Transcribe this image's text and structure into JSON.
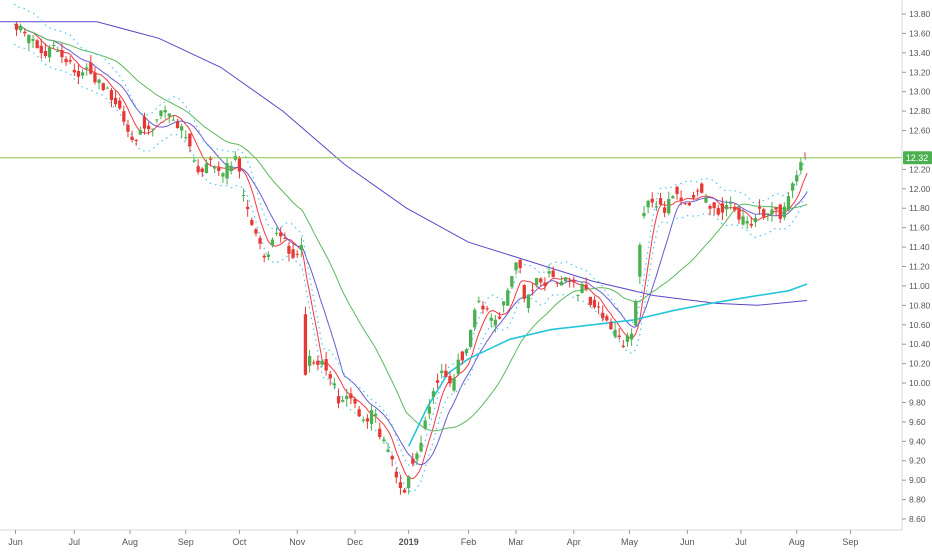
{
  "chart_data": {
    "type": "candlestick",
    "title": "",
    "xlabel": "",
    "ylabel": "",
    "grid": false,
    "legend": "none",
    "last_price_label": "12.32",
    "last_price": 12.32,
    "ylim": [
      8.5,
      13.95
    ],
    "y_ticks": [
      8.6,
      8.8,
      9.0,
      9.2,
      9.4,
      9.6,
      9.8,
      10.0,
      10.2,
      10.4,
      10.6,
      10.8,
      11.0,
      11.2,
      11.4,
      11.6,
      11.8,
      12.0,
      12.2,
      12.4,
      12.6,
      12.8,
      13.0,
      13.2,
      13.4,
      13.6,
      13.8
    ],
    "x_ticks": [
      {
        "label": "Jun",
        "t": 0.5
      },
      {
        "label": "Jul",
        "t": 29
      },
      {
        "label": "Aug",
        "t": 56
      },
      {
        "label": "Sep",
        "t": 83
      },
      {
        "label": "Oct",
        "t": 109
      },
      {
        "label": "Nov",
        "t": 137
      },
      {
        "label": "Dec",
        "t": 165
      },
      {
        "label": "2019",
        "t": 191
      },
      {
        "label": "Feb",
        "t": 220
      },
      {
        "label": "Mar",
        "t": 243
      },
      {
        "label": "Apr",
        "t": 271
      },
      {
        "label": "May",
        "t": 298
      },
      {
        "label": "Jun",
        "t": 326
      },
      {
        "label": "Jul",
        "t": 352
      },
      {
        "label": "Aug",
        "t": 379
      },
      {
        "label": "Sep",
        "t": 405
      }
    ],
    "x_range": [
      -7,
      430
    ],
    "close_anchors": [
      [
        0,
        13.68
      ],
      [
        8,
        13.52
      ],
      [
        15,
        13.4
      ],
      [
        20,
        13.45
      ],
      [
        25,
        13.32
      ],
      [
        30,
        13.18
      ],
      [
        35,
        13.25
      ],
      [
        40,
        13.1
      ],
      [
        45,
        13.0
      ],
      [
        50,
        12.9
      ],
      [
        55,
        12.6
      ],
      [
        57,
        12.45
      ],
      [
        62,
        12.7
      ],
      [
        66,
        12.62
      ],
      [
        70,
        12.75
      ],
      [
        74,
        12.8
      ],
      [
        79,
        12.65
      ],
      [
        84,
        12.5
      ],
      [
        88,
        12.2
      ],
      [
        91,
        12.15
      ],
      [
        95,
        12.3
      ],
      [
        100,
        12.1
      ],
      [
        104,
        12.25
      ],
      [
        108,
        12.32
      ],
      [
        110,
        11.95
      ],
      [
        113,
        11.8
      ],
      [
        117,
        11.5
      ],
      [
        121,
        11.25
      ],
      [
        124,
        11.45
      ],
      [
        128,
        11.55
      ],
      [
        132,
        11.4
      ],
      [
        136,
        11.3
      ],
      [
        139,
        11.4
      ],
      [
        141,
        10.1
      ],
      [
        143,
        10.3
      ],
      [
        146,
        10.15
      ],
      [
        150,
        10.2
      ],
      [
        154,
        10.0
      ],
      [
        158,
        9.8
      ],
      [
        162,
        9.95
      ],
      [
        166,
        9.7
      ],
      [
        170,
        9.6
      ],
      [
        174,
        9.7
      ],
      [
        178,
        9.4
      ],
      [
        182,
        9.25
      ],
      [
        186,
        8.95
      ],
      [
        189,
        8.85
      ],
      [
        192,
        9.2
      ],
      [
        196,
        9.3
      ],
      [
        200,
        9.7
      ],
      [
        204,
        10.0
      ],
      [
        208,
        10.1
      ],
      [
        212,
        10.0
      ],
      [
        216,
        10.25
      ],
      [
        220,
        10.4
      ],
      [
        224,
        10.8
      ],
      [
        228,
        10.75
      ],
      [
        232,
        10.6
      ],
      [
        236,
        10.75
      ],
      [
        240,
        11.0
      ],
      [
        244,
        11.25
      ],
      [
        248,
        10.8
      ],
      [
        252,
        11.05
      ],
      [
        256,
        11.0
      ],
      [
        260,
        11.15
      ],
      [
        264,
        11.05
      ],
      [
        268,
        11.1
      ],
      [
        272,
        10.95
      ],
      [
        276,
        11.0
      ],
      [
        280,
        10.8
      ],
      [
        284,
        10.75
      ],
      [
        288,
        10.6
      ],
      [
        292,
        10.45
      ],
      [
        296,
        10.4
      ],
      [
        300,
        10.55
      ],
      [
        302,
        11.1
      ],
      [
        304,
        11.7
      ],
      [
        308,
        11.9
      ],
      [
        312,
        11.85
      ],
      [
        316,
        11.8
      ],
      [
        320,
        11.95
      ],
      [
        324,
        11.8
      ],
      [
        328,
        11.9
      ],
      [
        332,
        12.0
      ],
      [
        336,
        11.85
      ],
      [
        340,
        11.8
      ],
      [
        344,
        11.75
      ],
      [
        348,
        11.85
      ],
      [
        352,
        11.7
      ],
      [
        356,
        11.6
      ],
      [
        360,
        11.8
      ],
      [
        364,
        11.75
      ],
      [
        368,
        11.85
      ],
      [
        372,
        11.7
      ],
      [
        375,
        11.9
      ],
      [
        378,
        12.15
      ],
      [
        381,
        12.25
      ],
      [
        384,
        12.32
      ]
    ],
    "n_bars": 385,
    "series": [
      {
        "name": "",
        "kind": "ma",
        "period": 10,
        "color": "#f23645"
      },
      {
        "name": "",
        "kind": "ma",
        "period": 20,
        "color": "#6a5acd"
      },
      {
        "name": "",
        "kind": "ma",
        "period": 50,
        "color": "#5cb85c"
      },
      {
        "name": "",
        "kind": "ma",
        "period": 200,
        "color": "#5b48c8",
        "points": [
          [
            -7,
            13.72
          ],
          [
            40,
            13.72
          ],
          [
            70,
            13.55
          ],
          [
            100,
            13.25
          ],
          [
            130,
            12.8
          ],
          [
            160,
            12.25
          ],
          [
            190,
            11.8
          ],
          [
            220,
            11.45
          ],
          [
            250,
            11.25
          ],
          [
            280,
            11.05
          ],
          [
            310,
            10.9
          ],
          [
            340,
            10.82
          ],
          [
            360,
            10.8
          ],
          [
            384,
            10.85
          ]
        ]
      },
      {
        "name": "",
        "kind": "ma",
        "period": 100,
        "color": "#26c6da",
        "points": [
          [
            191,
            9.35
          ],
          [
            200,
            9.75
          ],
          [
            210,
            10.1
          ],
          [
            220,
            10.25
          ],
          [
            240,
            10.45
          ],
          [
            260,
            10.55
          ],
          [
            280,
            10.6
          ],
          [
            300,
            10.65
          ],
          [
            320,
            10.75
          ],
          [
            340,
            10.83
          ],
          [
            360,
            10.9
          ],
          [
            375,
            10.95
          ],
          [
            384,
            11.02
          ]
        ]
      },
      {
        "name": "",
        "kind": "envelope",
        "color": "#4fc3f7",
        "style": "dotted"
      }
    ],
    "colors": {
      "up": "#4caf50",
      "down": "#e53935",
      "price_line": "#8bc34a",
      "axis": "#555555",
      "separator": "#d9d9d9"
    }
  }
}
